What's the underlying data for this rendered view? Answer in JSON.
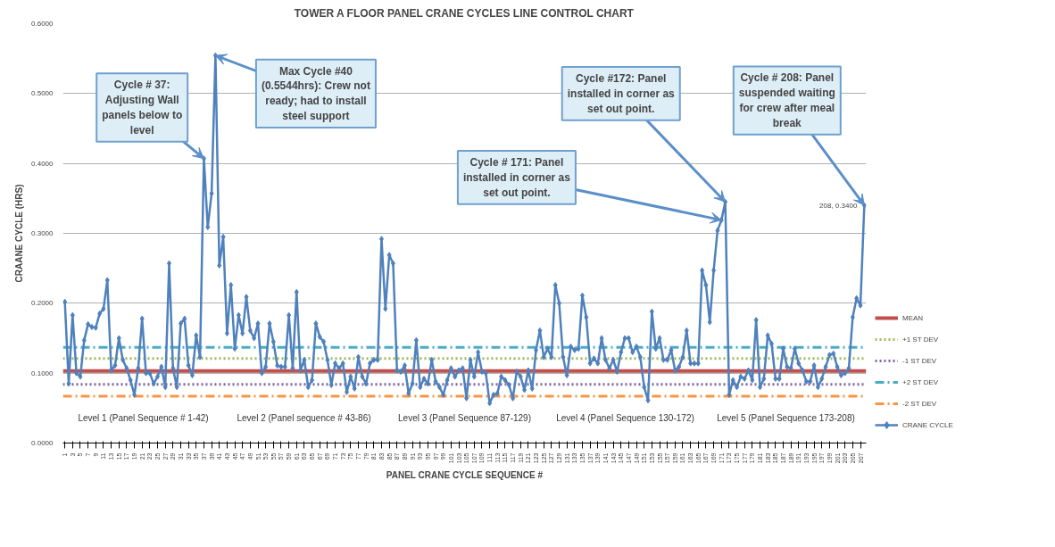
{
  "chart_data": {
    "type": "line",
    "title": "TOWER A FLOOR PANEL CRANE CYCLES LINE CONTROL CHART",
    "xlabel": "PANEL CRANE CYCLE SEQUENCE #",
    "ylabel": "CRAANE CYCLE (HRS)",
    "x": [
      1,
      2,
      3,
      4,
      5,
      6,
      7,
      8,
      9,
      10,
      11,
      12,
      13,
      14,
      15,
      16,
      17,
      18,
      19,
      20,
      21,
      22,
      23,
      24,
      25,
      26,
      27,
      28,
      29,
      30,
      31,
      32,
      33,
      34,
      35,
      36,
      37,
      38,
      39,
      40,
      41,
      42,
      43,
      44,
      45,
      46,
      47,
      48,
      49,
      50,
      51,
      52,
      53,
      54,
      55,
      56,
      57,
      58,
      59,
      60,
      61,
      62,
      63,
      64,
      65,
      66,
      67,
      68,
      69,
      70,
      71,
      72,
      73,
      74,
      75,
      76,
      77,
      78,
      79,
      80,
      81,
      82,
      83,
      84,
      85,
      86,
      87,
      88,
      89,
      90,
      91,
      92,
      93,
      94,
      95,
      96,
      97,
      98,
      99,
      100,
      101,
      102,
      103,
      104,
      105,
      106,
      107,
      108,
      109,
      110,
      111,
      112,
      113,
      114,
      115,
      116,
      117,
      118,
      119,
      120,
      121,
      122,
      123,
      124,
      125,
      126,
      127,
      128,
      129,
      130,
      131,
      132,
      133,
      134,
      135,
      136,
      137,
      138,
      139,
      140,
      141,
      142,
      143,
      144,
      145,
      146,
      147,
      148,
      149,
      150,
      151,
      152,
      153,
      154,
      155,
      156,
      157,
      158,
      159,
      160,
      161,
      162,
      163,
      164,
      165,
      166,
      167,
      168,
      169,
      170,
      171,
      172,
      173,
      174,
      175,
      176,
      177,
      178,
      179,
      180,
      181,
      182,
      183,
      184,
      185,
      186,
      187,
      188,
      189,
      190,
      191,
      192,
      193,
      194,
      195,
      196,
      197,
      198,
      199,
      200,
      201,
      202,
      203,
      204,
      205,
      206,
      207,
      208
    ],
    "xlim": [
      0.5,
      208.5
    ],
    "xticks": [
      1,
      3,
      5,
      7,
      9,
      11,
      13,
      15,
      17,
      19,
      21,
      23,
      25,
      27,
      29,
      31,
      33,
      35,
      37,
      39,
      41,
      43,
      45,
      47,
      49,
      51,
      53,
      55,
      57,
      59,
      61,
      63,
      65,
      67,
      69,
      71,
      73,
      75,
      77,
      79,
      81,
      83,
      85,
      87,
      89,
      91,
      93,
      95,
      97,
      99,
      101,
      103,
      105,
      107,
      109,
      111,
      113,
      115,
      117,
      119,
      121,
      123,
      125,
      127,
      129,
      131,
      133,
      135,
      137,
      139,
      141,
      143,
      145,
      147,
      149,
      151,
      153,
      155,
      157,
      159,
      161,
      163,
      165,
      167,
      169,
      171,
      173,
      175,
      177,
      179,
      181,
      183,
      185,
      187,
      189,
      191,
      193,
      195,
      197,
      199,
      201,
      203,
      205,
      207
    ],
    "ylim": [
      0,
      0.6
    ],
    "yticks": [
      {
        "value": 0,
        "label": "0.0000"
      },
      {
        "value": 0.1,
        "label": "0.1000"
      },
      {
        "value": 0.2,
        "label": "0.2000"
      },
      {
        "value": 0.3,
        "label": "0.3000"
      },
      {
        "value": 0.4,
        "label": "0.4000"
      },
      {
        "value": 0.5,
        "label": "0.5000"
      },
      {
        "value": 0.6,
        "label": "0.6000"
      }
    ],
    "grid": "y",
    "legend": "right",
    "marker": "diamond",
    "line_style": "solid",
    "series": [
      {
        "name": "CRANE CYCLE",
        "color": "#4f81bd",
        "values": [
          0.202,
          0.085,
          0.183,
          0.1,
          0.095,
          0.147,
          0.17,
          0.166,
          0.165,
          0.185,
          0.192,
          0.233,
          0.104,
          0.111,
          0.15,
          0.119,
          0.107,
          0.09,
          0.069,
          0.107,
          0.178,
          0.1,
          0.1,
          0.085,
          0.095,
          0.109,
          0.08,
          0.257,
          0.107,
          0.08,
          0.171,
          0.178,
          0.111,
          0.097,
          0.154,
          0.123,
          0.407,
          0.309,
          0.357,
          0.5544,
          0.254,
          0.295,
          0.157,
          0.226,
          0.135,
          0.183,
          0.157,
          0.209,
          0.161,
          0.15,
          0.171,
          0.1,
          0.109,
          0.171,
          0.145,
          0.111,
          0.109,
          0.109,
          0.183,
          0.107,
          0.216,
          0.104,
          0.119,
          0.08,
          0.09,
          0.171,
          0.152,
          0.145,
          0.119,
          0.083,
          0.114,
          0.107,
          0.114,
          0.073,
          0.095,
          0.078,
          0.123,
          0.095,
          0.085,
          0.114,
          0.119,
          0.119,
          0.292,
          0.192,
          0.269,
          0.257,
          0.104,
          0.102,
          0.111,
          0.071,
          0.085,
          0.147,
          0.08,
          0.092,
          0.085,
          0.119,
          0.088,
          0.08,
          0.069,
          0.09,
          0.107,
          0.095,
          0.104,
          0.107,
          0.064,
          0.119,
          0.095,
          0.13,
          0.102,
          0.1,
          0.057,
          0.069,
          0.071,
          0.095,
          0.09,
          0.083,
          0.064,
          0.102,
          0.095,
          0.076,
          0.104,
          0.078,
          0.133,
          0.161,
          0.123,
          0.135,
          0.123,
          0.226,
          0.2,
          0.123,
          0.097,
          0.138,
          0.133,
          0.135,
          0.211,
          0.18,
          0.114,
          0.121,
          0.114,
          0.15,
          0.119,
          0.107,
          0.119,
          0.102,
          0.13,
          0.15,
          0.15,
          0.13,
          0.138,
          0.123,
          0.08,
          0.061,
          0.188,
          0.135,
          0.15,
          0.119,
          0.119,
          0.133,
          0.104,
          0.109,
          0.123,
          0.161,
          0.114,
          0.114,
          0.114,
          0.247,
          0.226,
          0.173,
          0.247,
          0.304,
          0.319,
          0.345,
          0.069,
          0.09,
          0.08,
          0.095,
          0.092,
          0.104,
          0.09,
          0.176,
          0.08,
          0.092,
          0.154,
          0.142,
          0.092,
          0.092,
          0.135,
          0.109,
          0.107,
          0.135,
          0.114,
          0.104,
          0.088,
          0.088,
          0.111,
          0.08,
          0.092,
          0.109,
          0.126,
          0.128,
          0.109,
          0.097,
          0.1,
          0.107,
          0.18,
          0.207,
          0.197,
          0.34
        ],
        "value_labels": [
          null,
          null,
          null,
          null,
          null,
          null,
          null,
          null,
          null,
          null,
          null,
          null,
          null,
          null,
          null,
          null,
          null,
          null,
          null,
          null,
          null,
          null,
          null,
          null,
          null,
          null,
          null,
          null,
          null,
          null,
          null,
          null,
          null,
          null,
          null,
          null,
          null,
          null,
          null,
          null,
          null,
          null,
          null,
          null,
          null,
          null,
          null,
          null,
          null,
          null,
          null,
          null,
          null,
          null,
          null,
          null,
          null,
          null,
          null,
          null,
          null,
          null,
          null,
          null,
          null,
          null,
          null,
          null,
          null,
          null,
          null,
          null,
          null,
          null,
          null,
          null,
          null,
          null,
          null,
          null,
          null,
          null,
          null,
          null,
          null,
          null,
          null,
          null,
          null,
          null,
          null,
          null,
          null,
          null,
          null,
          null,
          null,
          null,
          null,
          null,
          null,
          null,
          null,
          null,
          null,
          null,
          null,
          null,
          null,
          null,
          null,
          null,
          null,
          null,
          null,
          null,
          null,
          null,
          null,
          null,
          null,
          null,
          null,
          null,
          null,
          null,
          null,
          null,
          null,
          null,
          null,
          null,
          null,
          null,
          null,
          null,
          null,
          null,
          null,
          null,
          null,
          null,
          null,
          null,
          null,
          null,
          null,
          null,
          null,
          null,
          null,
          null,
          null,
          null,
          null,
          null,
          null,
          null,
          null,
          null,
          null,
          null,
          null,
          null,
          null,
          null,
          null,
          null,
          null,
          null,
          null,
          null,
          null,
          null,
          null,
          null,
          null,
          null,
          null,
          null,
          null,
          null,
          null,
          null,
          null,
          null,
          null,
          null,
          null,
          null,
          null,
          null,
          null,
          null,
          null,
          null,
          null,
          null,
          null,
          null,
          null,
          null,
          null,
          null,
          null,
          null,
          null,
          "208, 0.3400"
        ]
      }
    ],
    "ref_lines": [
      {
        "axis": "y",
        "value": 0.103,
        "label": "MEAN",
        "color": "#c0504d",
        "line_style": "solid"
      },
      {
        "axis": "y",
        "value": 0.121,
        "label": "+1 ST DEV",
        "color": "#9bbb59",
        "line_style": "dotted"
      },
      {
        "axis": "y",
        "value": 0.084,
        "label": "-1 ST DEV",
        "color": "#8064a2",
        "line_style": "dotted"
      },
      {
        "axis": "y",
        "value": 0.137,
        "label": "+2 ST DEV",
        "color": "#4bacc6",
        "line_style": "dashed"
      },
      {
        "axis": "y",
        "value": 0.067,
        "label": "-2 ST DEV",
        "color": "#f79646",
        "line_style": "dashed"
      }
    ],
    "annotations": [
      {
        "text": "Max Cycle #40 (0.5544hrs): Crew not ready; had to install steel support",
        "x": 40,
        "y": 0.5544
      },
      {
        "text": "Cycle # 37: Adjusting Wall panels below to level",
        "x": 37,
        "y": 0.407
      },
      {
        "text": "Cycle # 171: Panel installed in corner as set out point.",
        "x": 171,
        "y": 0.319
      },
      {
        "text": "Cycle #172: Panel installed in corner as set out point.",
        "x": 172,
        "y": 0.345
      },
      {
        "text": "Cycle # 208: Panel suspended waiting for crew after meal break",
        "x": 208,
        "y": 0.34
      },
      "Level 1 (Panel Sequence # 1-42)",
      "Level 2 (Panel sequence # 43-86)",
      "Level 3 (Panel Sequence 87-129)",
      "Level 4 (Panel Sequence 130-172)",
      "Level 5 (Panel Sequence 173-208)"
    ]
  }
}
